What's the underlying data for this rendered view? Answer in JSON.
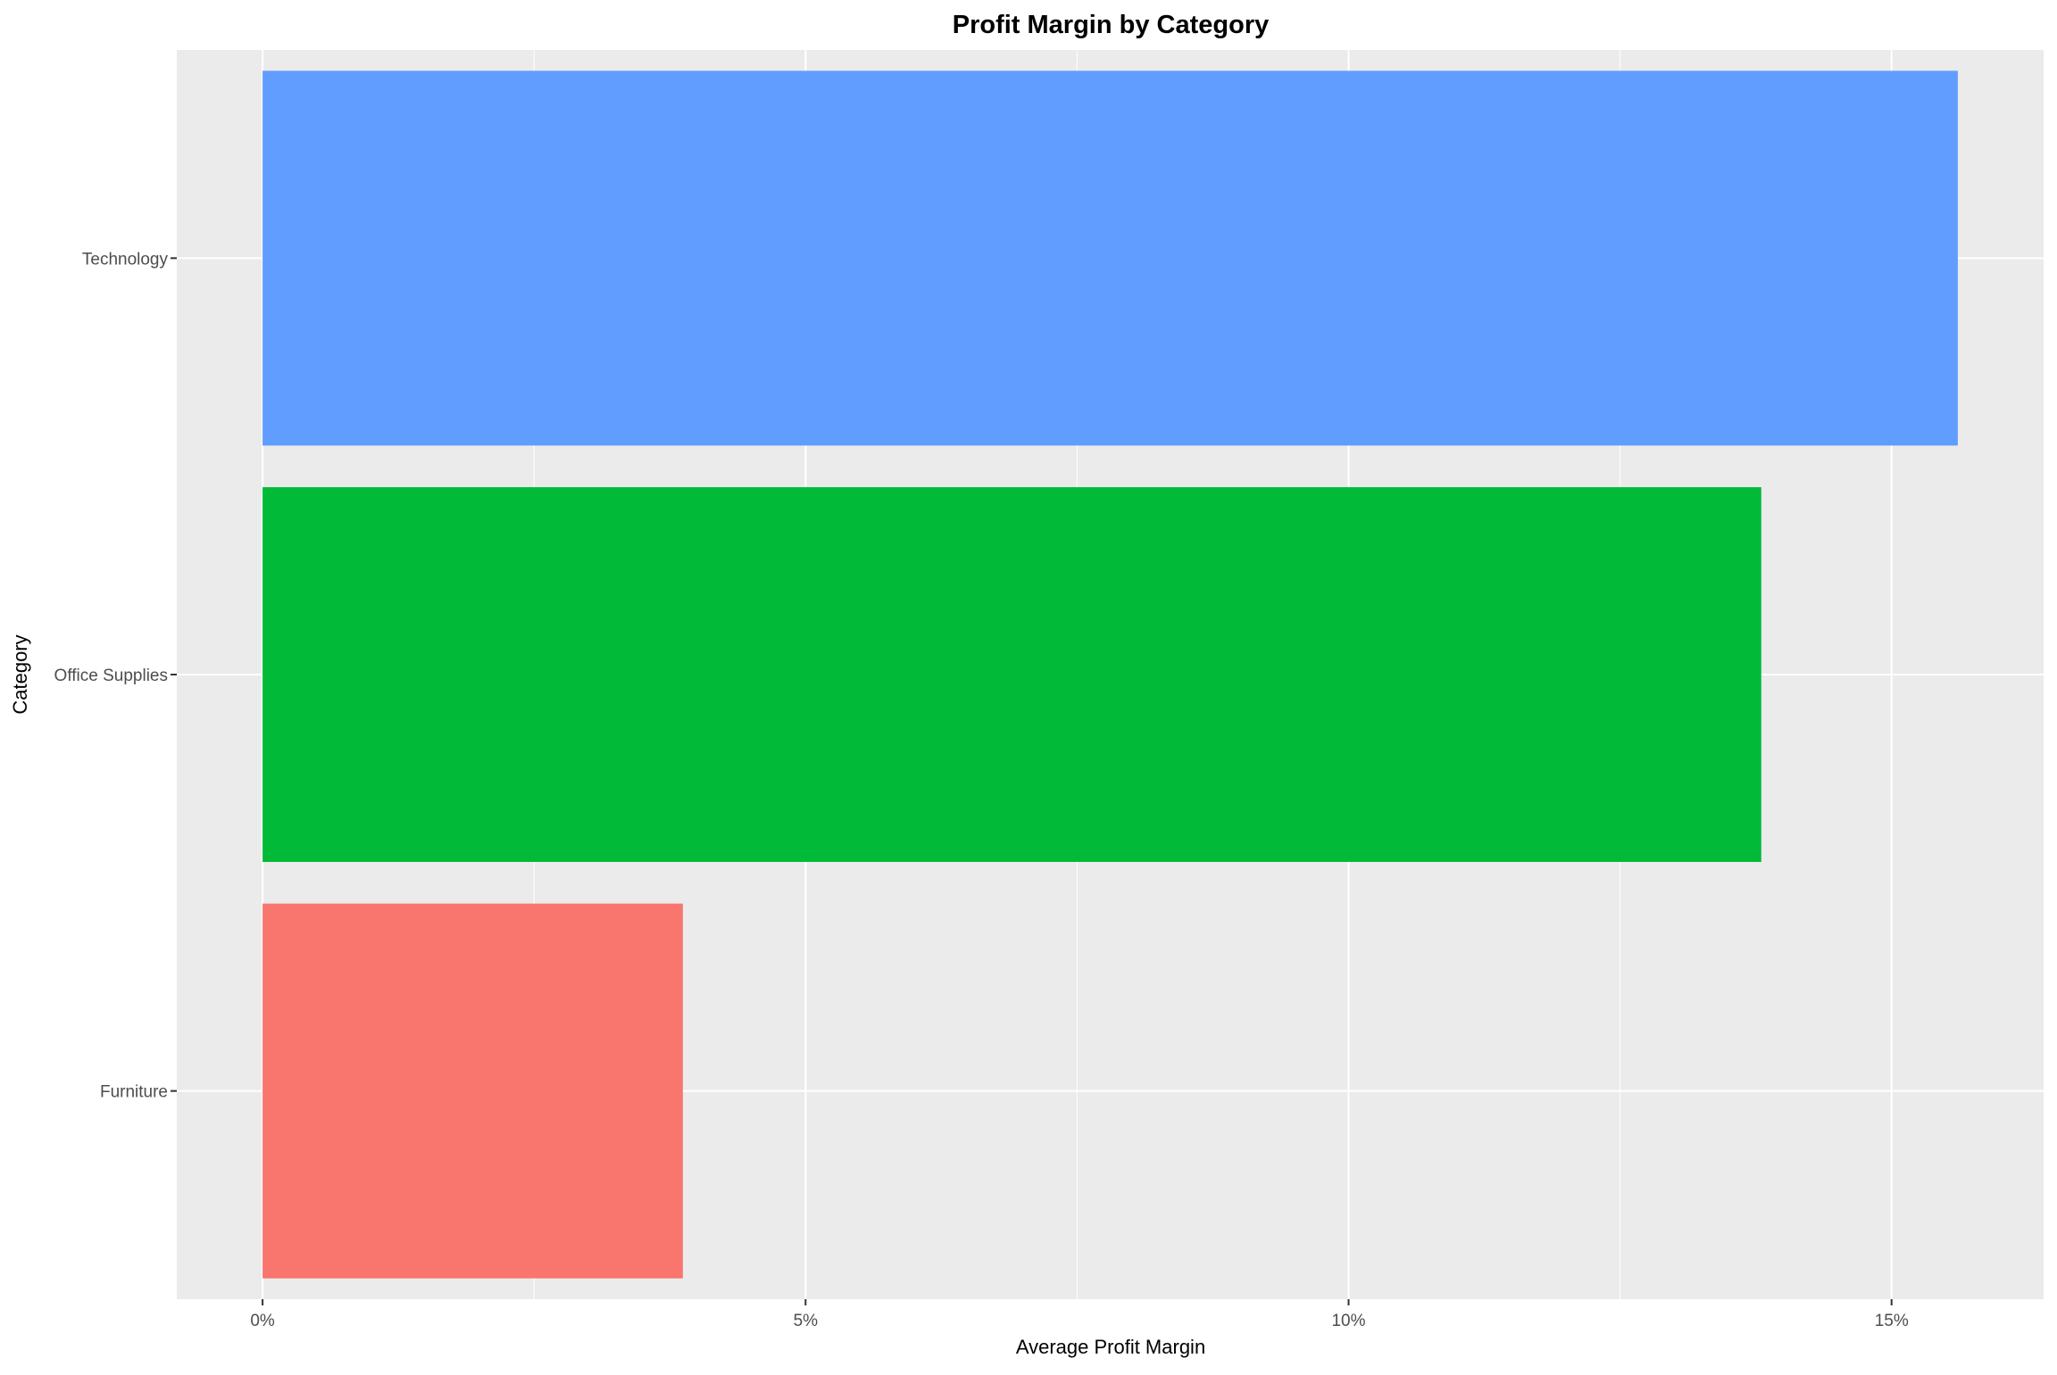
{
  "chart_data": {
    "type": "bar",
    "orientation": "horizontal",
    "title": "Profit Margin by Category",
    "xlabel": "Average Profit Margin",
    "ylabel": "Category",
    "categories": [
      "Furniture",
      "Office Supplies",
      "Technology"
    ],
    "values": [
      3.87,
      13.8,
      15.61
    ],
    "value_format": "percent",
    "xlim": [
      -0.79,
      16.4
    ],
    "x_ticks": [
      0,
      5,
      10,
      15
    ],
    "x_tick_labels": [
      "0%",
      "5%",
      "10%",
      "15%"
    ],
    "colors": [
      "#F8766D",
      "#00BA38",
      "#619CFF"
    ],
    "panel_background": "#EBEBEB",
    "grid_color": "#FFFFFF",
    "grid": true,
    "legend": "none"
  }
}
